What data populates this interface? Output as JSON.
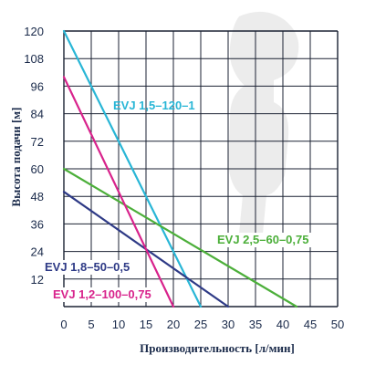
{
  "chart_data": {
    "type": "line",
    "xlabel": "Производительность [л/мин]",
    "ylabel": "Высота подачи [м]",
    "xlim": [
      0,
      50
    ],
    "ylim": [
      0,
      120
    ],
    "xticks": [
      "0",
      "5",
      "10",
      "15",
      "20",
      "25",
      "30",
      "35",
      "40",
      "45",
      "50"
    ],
    "yticks": [
      "0",
      "12",
      "24",
      "36",
      "48",
      "60",
      "72",
      "84",
      "96",
      "108",
      "120"
    ],
    "grid": true,
    "series": [
      {
        "name": "EVJ 1,5–120–1",
        "color": "#29b6d6",
        "x": [
          0,
          25
        ],
        "y": [
          120,
          0
        ]
      },
      {
        "name": "EVJ 2,5–60–0,75",
        "color": "#4caf3a",
        "x": [
          0,
          42.5
        ],
        "y": [
          60,
          0
        ]
      },
      {
        "name": "EVJ 1,8–50–0,5",
        "color": "#2e3a86",
        "x": [
          0,
          30
        ],
        "y": [
          50,
          0
        ]
      },
      {
        "name": "EVJ 1,2–100–0,75",
        "color": "#d8238c",
        "x": [
          0,
          20
        ],
        "y": [
          100,
          0
        ]
      }
    ]
  }
}
